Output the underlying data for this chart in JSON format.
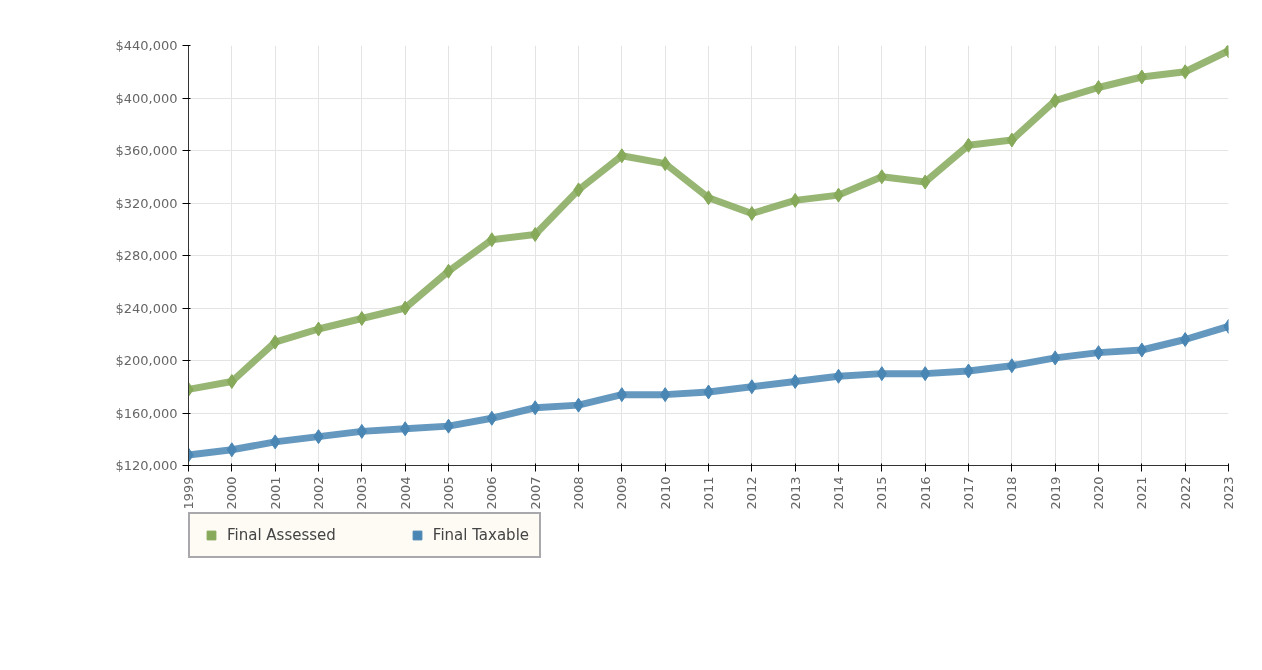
{
  "chart_data": {
    "type": "line",
    "x": [
      1999,
      2000,
      2001,
      2002,
      2003,
      2004,
      2005,
      2006,
      2007,
      2008,
      2009,
      2010,
      2011,
      2012,
      2013,
      2014,
      2015,
      2016,
      2017,
      2018,
      2019,
      2020,
      2021,
      2022,
      2023
    ],
    "series": [
      {
        "name": "Final Assessed",
        "color": "#86a95a",
        "values": [
          178000,
          184000,
          214000,
          224000,
          232000,
          240000,
          268000,
          292000,
          296000,
          330000,
          356000,
          350000,
          324000,
          312000,
          322000,
          326000,
          340000,
          336000,
          364000,
          368000,
          398000,
          408000,
          416000,
          420000,
          436000
        ]
      },
      {
        "name": "Final Taxable",
        "color": "#4a86b4",
        "values": [
          128000,
          132000,
          138000,
          142000,
          146000,
          148000,
          150000,
          156000,
          164000,
          166000,
          174000,
          174000,
          176000,
          180000,
          184000,
          188000,
          190000,
          190000,
          192000,
          196000,
          202000,
          206000,
          208000,
          216000,
          226000
        ]
      }
    ],
    "xlim": [
      1999,
      2023
    ],
    "xticks": [
      1999,
      2000,
      2001,
      2002,
      2003,
      2004,
      2005,
      2006,
      2007,
      2008,
      2009,
      2010,
      2011,
      2012,
      2013,
      2014,
      2015,
      2016,
      2017,
      2018,
      2019,
      2020,
      2021,
      2022,
      2023
    ],
    "ylim": [
      120000,
      440000
    ],
    "yticks": [
      {
        "value": 120000,
        "label": "$120,000"
      },
      {
        "value": 160000,
        "label": "$160,000"
      },
      {
        "value": 200000,
        "label": "$200,000"
      },
      {
        "value": 240000,
        "label": "$240,000"
      },
      {
        "value": 280000,
        "label": "$280,000"
      },
      {
        "value": 320000,
        "label": "$320,000"
      },
      {
        "value": 360000,
        "label": "$360,000"
      },
      {
        "value": 400000,
        "label": "$400,000"
      },
      {
        "value": 440000,
        "label": "$440,000"
      }
    ],
    "grid": true,
    "legend": "bottom",
    "marker": "diamond",
    "line_style": "solid"
  }
}
